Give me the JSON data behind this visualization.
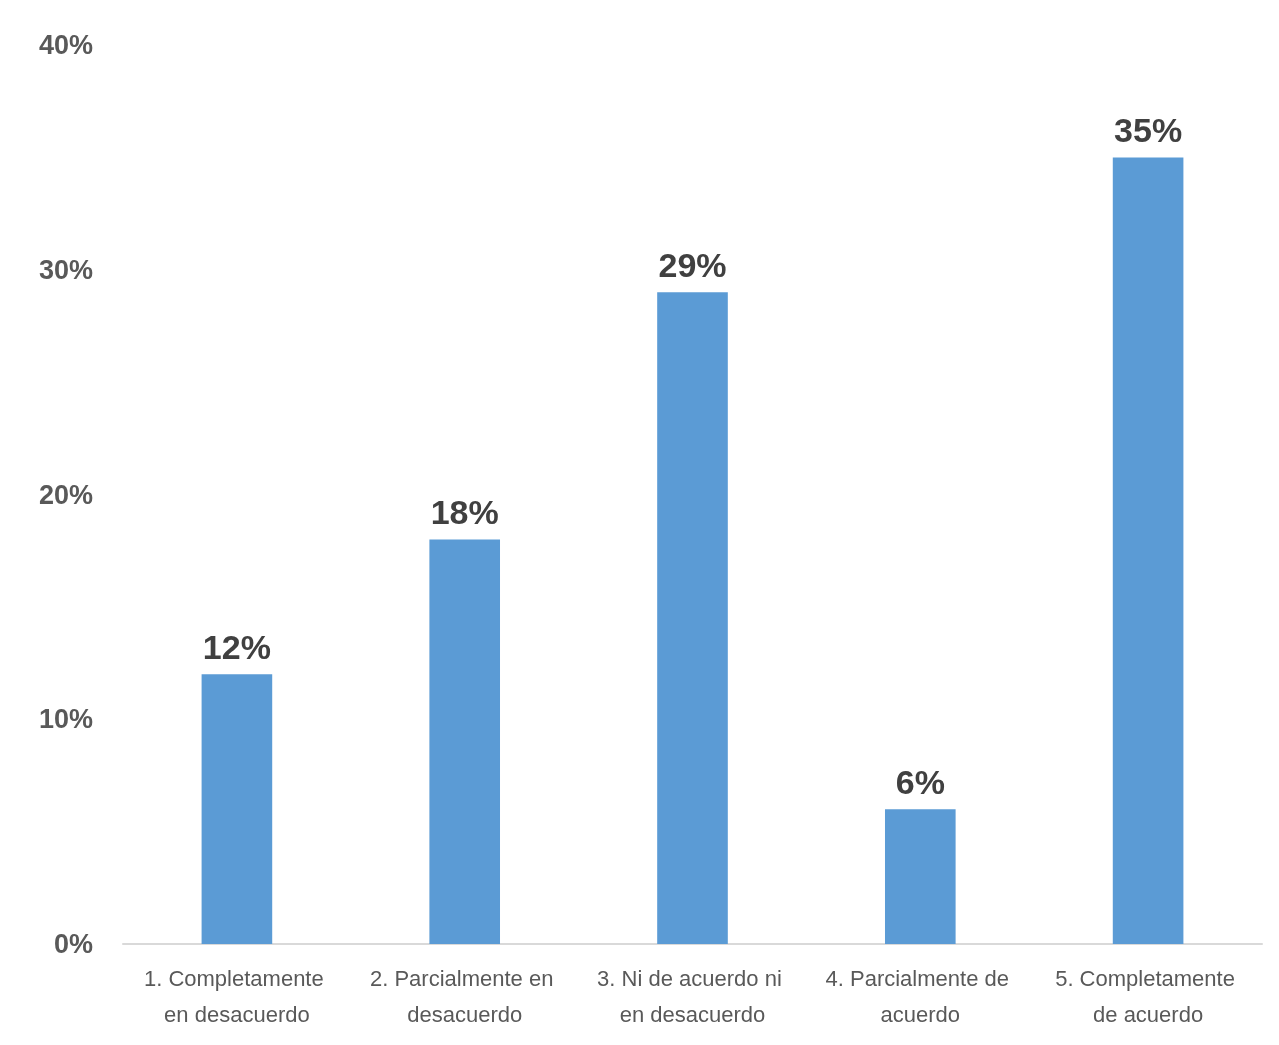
{
  "chart_data": {
    "type": "bar",
    "categories": [
      "1. Completamente en desacuerdo",
      "2. Parcialmente en desacuerdo",
      "3. Ni de acuerdo ni en desacuerdo",
      "4. Parcialmente de acuerdo",
      "5. Completamente de acuerdo"
    ],
    "values": [
      12,
      18,
      29,
      6,
      35
    ],
    "value_labels": [
      "12%",
      "18%",
      "29%",
      "6%",
      "35%"
    ],
    "color": "#5b9bd5",
    "ylim": [
      0,
      40
    ],
    "yticks": [
      {
        "value": 0,
        "label": "0%"
      },
      {
        "value": 10,
        "label": "10%"
      },
      {
        "value": 20,
        "label": "20%"
      },
      {
        "value": 30,
        "label": "30%"
      },
      {
        "value": 40,
        "label": "40%"
      }
    ],
    "grid": false
  }
}
